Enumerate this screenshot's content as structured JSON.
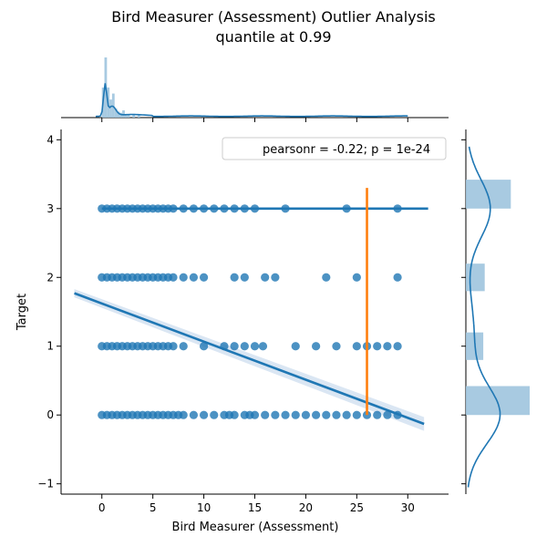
{
  "chart_data": {
    "type": "scatter",
    "title": "Bird Measurer (Assessment) Outlier Analysis",
    "subtitle": "quantile at 0.99",
    "xlabel": "Bird Measurer (Assessment)",
    "ylabel": "Target",
    "xlim": [
      -4,
      34
    ],
    "ylim": [
      -1.15,
      4.15
    ],
    "xticks": [
      0,
      5,
      10,
      15,
      20,
      25,
      30
    ],
    "yticks": [
      -1,
      0,
      1,
      2,
      3,
      4
    ],
    "legend": {
      "text": "pearsonr = -0.22; p = 1e-24",
      "placement": "top-right"
    },
    "points": {
      "y0": [
        0,
        0.5,
        1,
        1.5,
        2,
        2.5,
        3,
        3.5,
        4,
        4.5,
        5,
        5.5,
        6,
        6.5,
        7,
        7.5,
        8,
        9,
        10,
        11,
        12,
        12.5,
        13,
        14,
        14.5,
        15,
        16,
        17,
        18,
        19,
        20,
        21,
        22,
        23,
        24,
        25,
        26,
        27,
        28,
        29
      ],
      "y1": [
        0,
        0.5,
        1,
        1.5,
        2,
        2.5,
        3,
        3.5,
        4,
        4.5,
        5,
        5.5,
        6,
        6.5,
        7,
        8,
        10,
        12,
        13,
        14,
        15,
        15.8,
        19,
        21,
        23,
        25,
        26,
        27,
        28,
        29
      ],
      "y2": [
        0,
        0.5,
        1,
        1.5,
        2,
        2.5,
        3,
        3.5,
        4,
        4.5,
        5,
        5.5,
        6,
        6.5,
        7,
        8,
        9,
        10,
        13,
        14,
        16,
        17,
        22,
        25,
        29
      ],
      "y3": [
        0,
        0.5,
        1,
        1.5,
        2,
        2.5,
        3,
        3.5,
        4,
        4.5,
        5,
        5.5,
        6,
        6.5,
        7,
        8,
        9,
        10,
        11,
        12,
        13,
        14,
        15,
        18,
        24,
        29
      ]
    },
    "fit_lines": [
      {
        "name": "overall",
        "x": [
          -2.7,
          31.6
        ],
        "y": [
          1.77,
          -0.13
        ],
        "ci_halfwidth": 0.1
      },
      {
        "name": "y3-group",
        "x": [
          0,
          32
        ],
        "y": [
          3,
          3
        ]
      }
    ],
    "quantile_marker": {
      "x": 26,
      "y_range": [
        0,
        3.3
      ]
    },
    "marginal_x": {
      "bins": [
        0.125,
        0.375,
        0.625,
        0.875,
        1.125,
        1.375,
        1.625,
        1.875,
        2.125,
        2.375,
        2.625,
        3.125,
        3.625
      ],
      "heights": [
        0.5,
        1.0,
        0.5,
        0.3,
        0.4,
        0.15,
        0.1,
        0.08,
        0.12,
        0.06,
        0.05,
        0.06,
        0.04
      ],
      "kde_peak_x": 0.3
    },
    "marginal_y": {
      "levels": [
        0,
        1,
        2,
        3
      ],
      "proportions": [
        0.44,
        0.12,
        0.13,
        0.31
      ]
    },
    "colors": {
      "points": "#1f77b4",
      "fit": "#1f77b4",
      "ci": "#aec8e4",
      "marker": "#ff7f0e",
      "hist": "#9fc4de"
    }
  }
}
